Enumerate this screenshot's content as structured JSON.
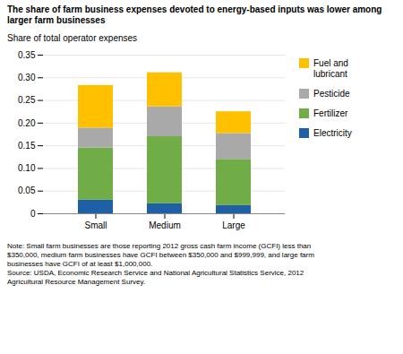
{
  "chart_data": {
    "type": "bar",
    "stacked": true,
    "title": "The share of farm business expenses devoted to energy-based inputs was lower among\nlarger farm businesses",
    "y_label": "Share of total operator expenses",
    "note": "Note: Small farm businesses are those reporting 2012 gross cash farm income (GCFI) less than\n$350,000, medium farm businesses have GCFI between $350,000 and $999,999, and large farm\nbusinesses have GCFI of at least $1,000,000.\nSource: USDA, Economic Research Service and National Agricultural Statistics Service, 2012\nAgricultural Resource Management Survey.",
    "categories": [
      "Small",
      "Medium",
      "Large"
    ],
    "series": [
      {
        "name": "Electricity",
        "color": "#1f5fa6",
        "values": [
          0.03,
          0.022,
          0.018
        ]
      },
      {
        "name": "Fertilizer",
        "color": "#70ad47",
        "values": [
          0.115,
          0.148,
          0.102
        ]
      },
      {
        "name": "Pesticide",
        "color": "#a9a9a9",
        "values": [
          0.044,
          0.066,
          0.057
        ]
      },
      {
        "name": "Fuel and\nlubricant",
        "color": "#ffc000",
        "values": [
          0.094,
          0.075,
          0.048
        ]
      }
    ],
    "ylim": [
      0,
      0.35
    ],
    "yticks": [
      0,
      0.05,
      {
        "value": 0.1,
        "label": "0.10"
      },
      0.15,
      {
        "value": 0.2,
        "label": "0.20"
      },
      0.25,
      {
        "value": 0.3,
        "label": "0.30"
      },
      0.35
    ],
    "grid": true,
    "legend": "right"
  }
}
